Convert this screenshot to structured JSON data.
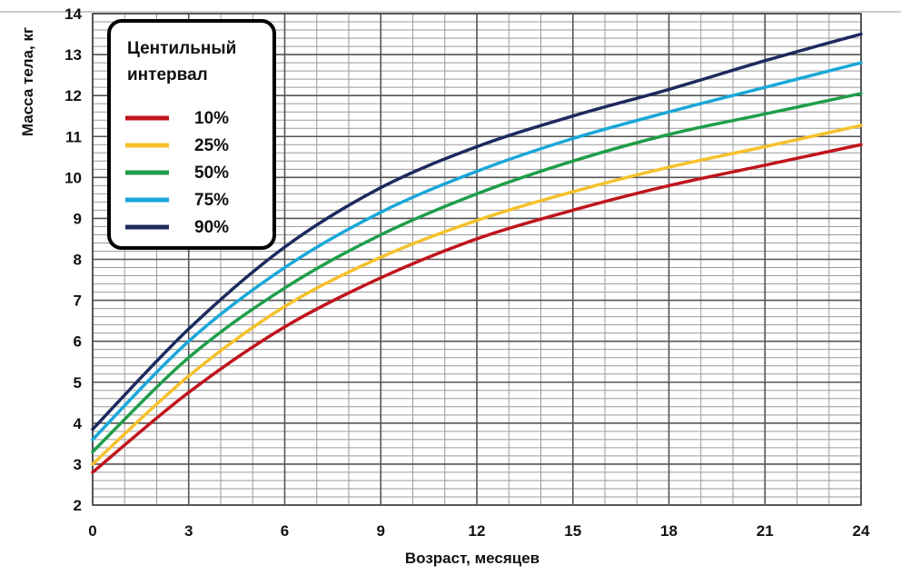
{
  "chart_data": {
    "type": "line",
    "title": "",
    "xlabel": "Возраст, месяцев",
    "ylabel": "Масса тела, кг",
    "xlim": [
      0,
      24
    ],
    "ylim": [
      2,
      14
    ],
    "x_ticks": [
      "0",
      "3",
      "6",
      "9",
      "12",
      "15",
      "18",
      "21",
      "24"
    ],
    "y_ticks": [
      "2",
      "3",
      "4",
      "5",
      "6",
      "7",
      "8",
      "9",
      "10",
      "11",
      "12",
      "13",
      "14"
    ],
    "grid": true,
    "legend": {
      "title_line1": "Центильный",
      "title_line2": "интервал",
      "placement": "top-left"
    },
    "x": [
      0,
      3,
      6,
      9,
      12,
      15,
      18,
      21,
      24
    ],
    "series": [
      {
        "name": "10%",
        "color": "#c0141c",
        "values": [
          2.8,
          4.75,
          6.35,
          7.55,
          8.5,
          9.2,
          9.8,
          10.3,
          10.8
        ]
      },
      {
        "name": "25%",
        "color": "#f5c12b",
        "values": [
          3.0,
          5.15,
          6.85,
          8.05,
          8.95,
          9.65,
          10.25,
          10.75,
          11.27
        ]
      },
      {
        "name": "50%",
        "color": "#1f9e4a",
        "values": [
          3.3,
          5.6,
          7.3,
          8.6,
          9.6,
          10.4,
          11.05,
          11.55,
          12.05
        ]
      },
      {
        "name": "75%",
        "color": "#1aa7d8",
        "values": [
          3.6,
          6.0,
          7.8,
          9.15,
          10.15,
          10.95,
          11.6,
          12.2,
          12.8
        ]
      },
      {
        "name": "90%",
        "color": "#1c2a5e",
        "values": [
          3.85,
          6.3,
          8.3,
          9.75,
          10.75,
          11.5,
          12.15,
          12.85,
          13.5
        ]
      }
    ]
  }
}
